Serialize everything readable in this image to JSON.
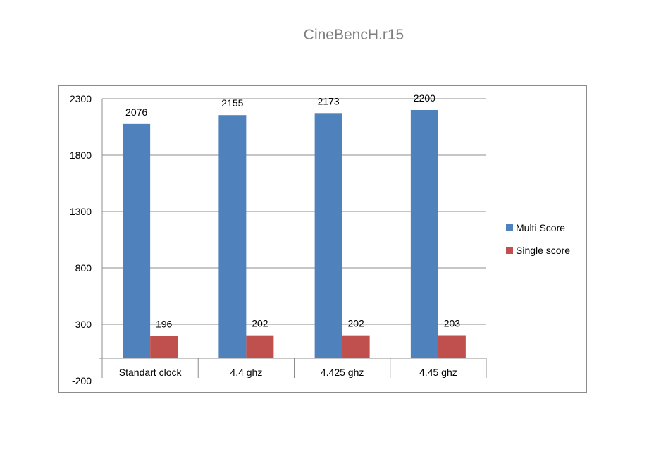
{
  "chart_data": {
    "type": "bar",
    "title": "CineBencH.r15",
    "xlabel": "",
    "ylabel": "",
    "categories": [
      "Standart clock",
      "4,4 ghz",
      "4.425 ghz",
      "4.45  ghz"
    ],
    "series": [
      {
        "name": "Multi Score",
        "color": "#4f81bd",
        "values": [
          2076,
          2155,
          2173,
          2200
        ]
      },
      {
        "name": "Single score",
        "color": "#c0504d",
        "values": [
          196,
          202,
          202,
          203
        ]
      }
    ],
    "ylim": [
      -200,
      2300
    ],
    "yticks": [
      -200,
      300,
      800,
      1300,
      1800,
      2300
    ],
    "baseline": 0,
    "grid": true,
    "legend_position": "right"
  }
}
